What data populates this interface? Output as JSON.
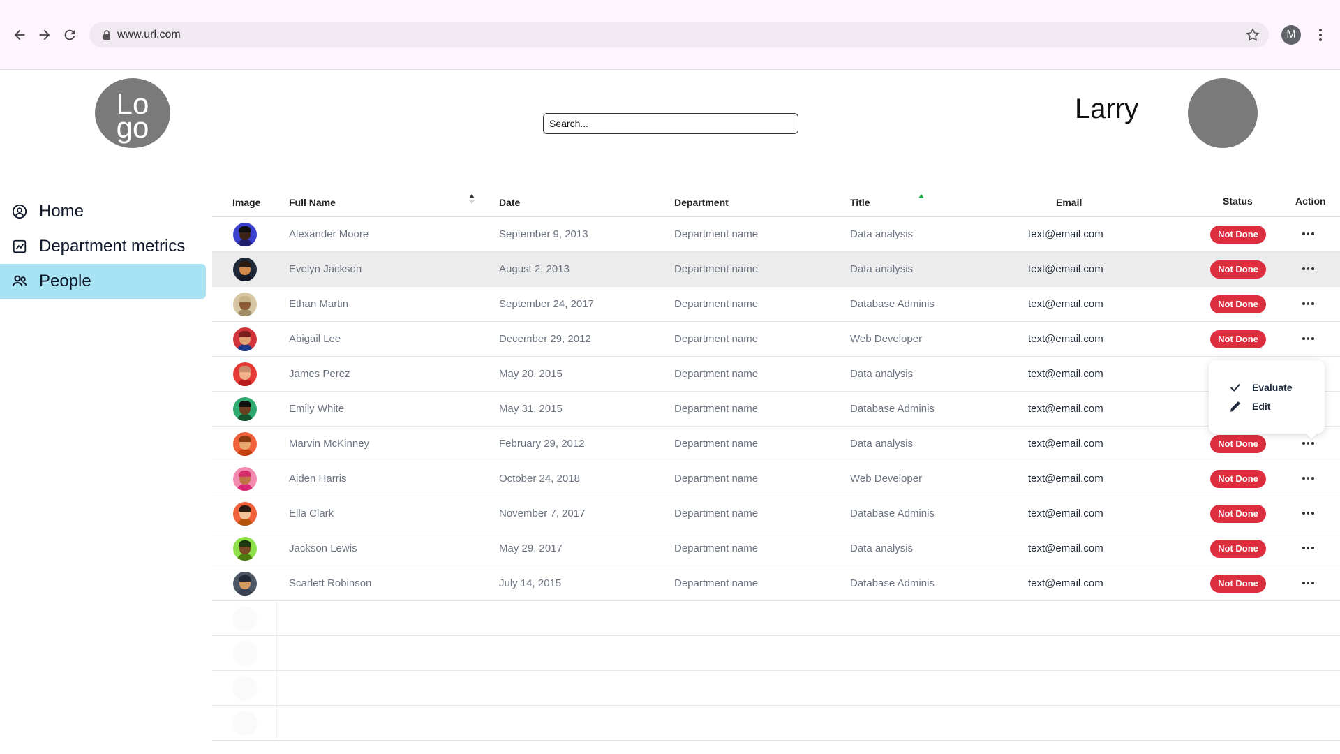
{
  "browser": {
    "url": "www.url.com",
    "profile_initial": "M"
  },
  "header": {
    "logo_line1": "Lo",
    "logo_line2": "go",
    "search_placeholder": "Search...",
    "username": "Larry"
  },
  "sidebar": {
    "items": [
      {
        "label": "Home",
        "icon": "user-circle-icon",
        "active": false
      },
      {
        "label": "Department metrics",
        "icon": "chart-icon",
        "active": false
      },
      {
        "label": "People",
        "icon": "people-icon",
        "active": true
      }
    ]
  },
  "table": {
    "columns": {
      "image": "Image",
      "full_name": "Full Name",
      "date": "Date",
      "department": "Department",
      "title": "Title",
      "email": "Email",
      "status": "Status",
      "action": "Action"
    },
    "rows": [
      {
        "name": "Alexander Moore",
        "date": "September 9, 2013",
        "department": "Department name",
        "title": "Data analysis",
        "email": "text@email.com",
        "status": "Not Done",
        "avatar_bg": "#3b3fce",
        "skin": "#3a2418",
        "hair": "#111111",
        "shirt": "#1e1e6a"
      },
      {
        "name": "Evelyn Jackson",
        "date": "August 2, 2013",
        "department": "Department name",
        "title": "Data analysis",
        "email": "text@email.com",
        "status": "Not Done",
        "avatar_bg": "#1f2937",
        "skin": "#d48a4a",
        "hair": "#2a1a10",
        "shirt": "#111827"
      },
      {
        "name": "Ethan Martin",
        "date": "September 24, 2017",
        "department": "Department name",
        "title": "Database Adminis",
        "email": "text@email.com",
        "status": "Not Done",
        "avatar_bg": "#d6c6a3",
        "skin": "#8c5a34",
        "hair": "#c9b48a",
        "shirt": "#a08e66"
      },
      {
        "name": "Abigail Lee",
        "date": "December 29, 2012",
        "department": "Department name",
        "title": "Web Developer",
        "email": "text@email.com",
        "status": "Not Done",
        "avatar_bg": "#d1343a",
        "skin": "#e0a070",
        "hair": "#7a1d1d",
        "shirt": "#1e3a8a"
      },
      {
        "name": "James Perez",
        "date": "May 20, 2015",
        "department": "Department name",
        "title": "Data analysis",
        "email": "text@email.com",
        "status": "",
        "avatar_bg": "#e53935",
        "skin": "#f0b08a",
        "hair": "#c98b6a",
        "shirt": "#b91c1c"
      },
      {
        "name": "Emily White",
        "date": "May 31, 2015",
        "department": "Department name",
        "title": "Database Adminis",
        "email": "text@email.com",
        "status": "",
        "avatar_bg": "#2faa70",
        "skin": "#6b3f20",
        "hair": "#111111",
        "shirt": "#14532d"
      },
      {
        "name": "Marvin McKinney",
        "date": "February 29, 2012",
        "department": "Department name",
        "title": "Data analysis",
        "email": "text@email.com",
        "status": "Not Done",
        "avatar_bg": "#f0603a",
        "skin": "#e8a66f",
        "hair": "#8b3a14",
        "shirt": "#c2410c"
      },
      {
        "name": "Aiden Harris",
        "date": "October 24, 2018",
        "department": "Department name",
        "title": "Web Developer",
        "email": "text@email.com",
        "status": "Not Done",
        "avatar_bg": "#f28ab0",
        "skin": "#c27645",
        "hair": "#d62f6b",
        "shirt": "#db2777"
      },
      {
        "name": "Ella Clark",
        "date": "November 7, 2017",
        "department": "Department name",
        "title": "Database Adminis",
        "email": "text@email.com",
        "status": "Not Done",
        "avatar_bg": "#f0603a",
        "skin": "#f2c29a",
        "hair": "#2b1a12",
        "shirt": "#b45309"
      },
      {
        "name": "Jackson Lewis",
        "date": "May 29, 2017",
        "department": "Department name",
        "title": "Data analysis",
        "email": "text@email.com",
        "status": "Not Done",
        "avatar_bg": "#8ee04a",
        "skin": "#7a4a26",
        "hair": "#1c3a12",
        "shirt": "#4d7c0f"
      },
      {
        "name": "Scarlett Robinson",
        "date": "July 14, 2015",
        "department": "Department name",
        "title": "Database Adminis",
        "email": "text@email.com",
        "status": "Not Done",
        "avatar_bg": "#4b5563",
        "skin": "#d59a64",
        "hair": "#1f2937",
        "shirt": "#374151"
      }
    ]
  },
  "action_menu": {
    "items": [
      {
        "label": "Evaluate",
        "icon": "check-icon"
      },
      {
        "label": "Edit",
        "icon": "pencil-icon"
      }
    ]
  },
  "colors": {
    "status_not_done": "#dc2e3e",
    "active_nav": "#a8e3f4",
    "title_sort_indicator": "#22a046"
  }
}
